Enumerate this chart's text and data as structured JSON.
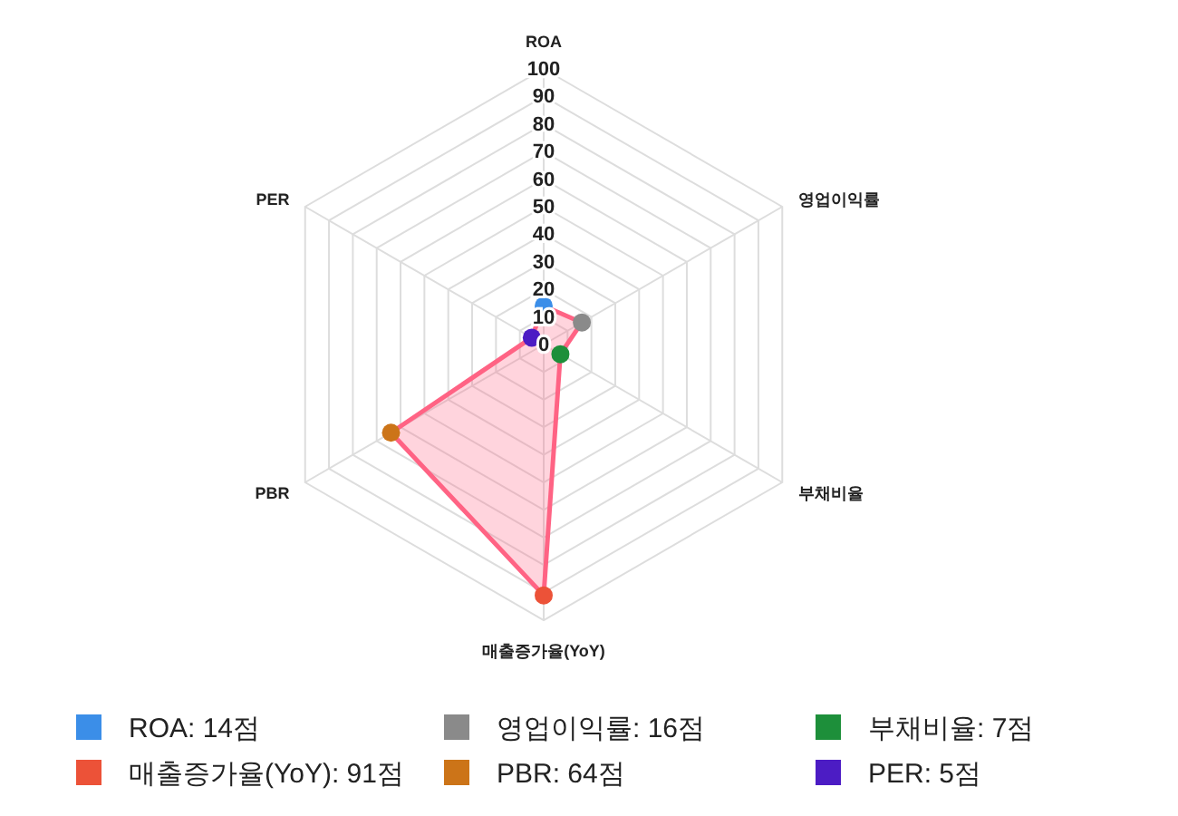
{
  "chart_data": {
    "type": "radar",
    "categories": [
      "ROA",
      "영업이익률",
      "부채비율",
      "매출증가율(YoY)",
      "PBR",
      "PER"
    ],
    "series": [
      {
        "color": "#ff6384",
        "values": [
          14,
          16,
          7,
          91,
          64,
          5
        ],
        "colors": [
          "#3b8ee8",
          "#8a8a8a",
          "#1d8f3a",
          "#ec5238",
          "#cc7418",
          "#4c1cc4"
        ]
      }
    ],
    "ylim": [
      0,
      100
    ],
    "yticks": [
      0,
      10,
      20,
      30,
      40,
      50,
      60,
      70,
      80,
      90,
      100
    ],
    "grid": true,
    "marker": "circle",
    "annotations": [
      "ROA: 14점",
      "영업이익률: 16점",
      "부채비율: 7점",
      "매출증가율(YoY): 91점",
      "PBR: 64점",
      "PER: 5점"
    ]
  }
}
